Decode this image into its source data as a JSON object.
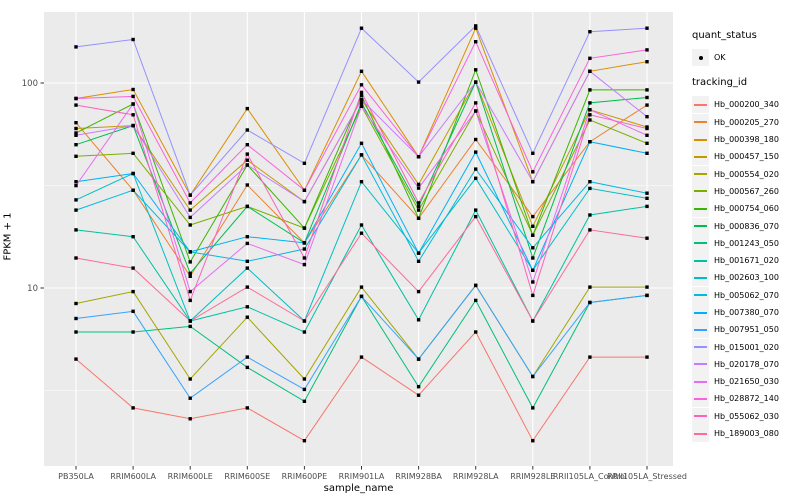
{
  "chart_data": {
    "type": "line",
    "title": "",
    "xlabel": "sample_name",
    "ylabel": "FPKM + 1",
    "y_scale": "log10",
    "ylim": [
      1.35,
      222
    ],
    "y_ticks": [
      {
        "value": 10,
        "label": "10"
      },
      {
        "value": 100,
        "label": "100"
      }
    ],
    "y_minor_ticks": [
      3.162,
      31.62
    ],
    "grid": true,
    "legend_position": "right",
    "panel_bg": "#ebebeb",
    "grid_color": "#ffffff",
    "point_color": "#000000",
    "axis_text_color": "#4d4d4d",
    "legend": {
      "quant_title": "quant_status",
      "quant_items": [
        {
          "label": "OK",
          "marker": "black-point"
        }
      ],
      "series_title": "tracking_id"
    },
    "categories": [
      "PB350LA",
      "RRIM600LA",
      "RRIM600LE",
      "RRIM600SE",
      "RRIM600PE",
      "RRIM901LA",
      "RRIM928BA",
      "RRIM928LA",
      "RRIM928LE",
      "RRII105LA_Control",
      "RRII105LA_Stressed"
    ],
    "series": [
      {
        "name": "Hb_000200_340",
        "color": "#F8766D",
        "values": [
          4.5,
          2.6,
          2.3,
          2.6,
          1.8,
          4.6,
          3.0,
          6.1,
          1.8,
          4.6,
          4.6
        ]
      },
      {
        "name": "Hb_000205_270",
        "color": "#EA8331",
        "values": [
          64,
          30,
          11.4,
          31.8,
          16.6,
          44.6,
          21.9,
          53,
          22.3,
          51.7,
          78
        ]
      },
      {
        "name": "Hb_000398_180",
        "color": "#D89000",
        "values": [
          84,
          93,
          28.4,
          75,
          30,
          114,
          43.7,
          185,
          33,
          114,
          127
        ]
      },
      {
        "name": "Hb_000457_150",
        "color": "#C09B00",
        "values": [
          60,
          62,
          24,
          42,
          26.4,
          83,
          32,
          101,
          20,
          74,
          61
        ]
      },
      {
        "name": "Hb_000554_020",
        "color": "#A3A500",
        "values": [
          8.4,
          9.6,
          3.6,
          7.2,
          3.6,
          10.1,
          4.5,
          10.3,
          3.7,
          10.1,
          10.1
        ]
      },
      {
        "name": "Hb_000567_260",
        "color": "#7CAE00",
        "values": [
          43.9,
          45.4,
          20.3,
          25,
          19.6,
          77,
          24,
          73,
          18.1,
          66,
          50.8
        ]
      },
      {
        "name": "Hb_000754_060",
        "color": "#39B600",
        "values": [
          57,
          79,
          13.4,
          39.8,
          19.6,
          87,
          21.9,
          116,
          18.1,
          92.5,
          92.5
        ]
      },
      {
        "name": "Hb_000836_070",
        "color": "#00BB4E",
        "values": [
          50,
          62,
          11.8,
          25,
          16.6,
          80,
          25,
          101,
          14,
          80,
          85
        ]
      },
      {
        "name": "Hb_001243_050",
        "color": "#00BF7D",
        "values": [
          6.1,
          6.1,
          6.5,
          4.1,
          2.8,
          9.1,
          3.3,
          8.7,
          2.6,
          8.5,
          9.2
        ]
      },
      {
        "name": "Hb_001671_020",
        "color": "#00C1A3",
        "values": [
          19.2,
          17.8,
          6.9,
          8.1,
          6.1,
          20.3,
          7.0,
          24,
          6.9,
          22.7,
          25
        ]
      },
      {
        "name": "Hb_002603_100",
        "color": "#00BFC4",
        "values": [
          26.9,
          36.2,
          6.9,
          12.5,
          6.9,
          33,
          14.8,
          34.3,
          12.2,
          30.6,
          27.4
        ]
      },
      {
        "name": "Hb_005062_070",
        "color": "#00BAE0",
        "values": [
          24,
          30,
          15.0,
          13.5,
          15.5,
          44.6,
          13.5,
          38,
          15.7,
          33,
          29
        ]
      },
      {
        "name": "Hb_007380_070",
        "color": "#00B0F6",
        "values": [
          33,
          36.2,
          15,
          17.8,
          16.6,
          50.8,
          14.8,
          46,
          12.2,
          51.7,
          45.4
        ]
      },
      {
        "name": "Hb_007951_050",
        "color": "#35A2FF",
        "values": [
          7.1,
          7.7,
          2.9,
          4.6,
          3.2,
          9.1,
          4.5,
          10.3,
          3.7,
          8.5,
          9.2
        ]
      },
      {
        "name": "Hb_015001_020",
        "color": "#9590FF",
        "values": [
          150,
          163,
          28.4,
          59,
          40.6,
          185,
          101,
          190,
          45.4,
          178,
          185
        ]
      },
      {
        "name": "Hb_020178_070",
        "color": "#C77CFF",
        "values": [
          55.6,
          62,
          22.1,
          39.8,
          26.4,
          83,
          43.7,
          101,
          33,
          114,
          68.5
        ]
      },
      {
        "name": "Hb_021650_030",
        "color": "#E76BF3",
        "values": [
          31.6,
          79,
          9.6,
          16.5,
          13,
          77,
          30.7,
          73,
          10.7,
          74,
          55.6
        ]
      },
      {
        "name": "Hb_028872_140",
        "color": "#FA62DB",
        "values": [
          84,
          86,
          26,
          50,
          30,
          98,
          43.7,
          159,
          36.9,
          132,
          145
        ]
      },
      {
        "name": "Hb_055062_030",
        "color": "#FF62BC",
        "values": [
          78,
          70,
          8.7,
          45,
          14,
          90,
          26,
          80,
          9.2,
          70,
          60
        ]
      },
      {
        "name": "Hb_189003_080",
        "color": "#FF6A98",
        "values": [
          14,
          12.5,
          6.9,
          10.1,
          6.9,
          18.5,
          9.6,
          22.3,
          6.9,
          19.2,
          17.5
        ]
      }
    ]
  }
}
